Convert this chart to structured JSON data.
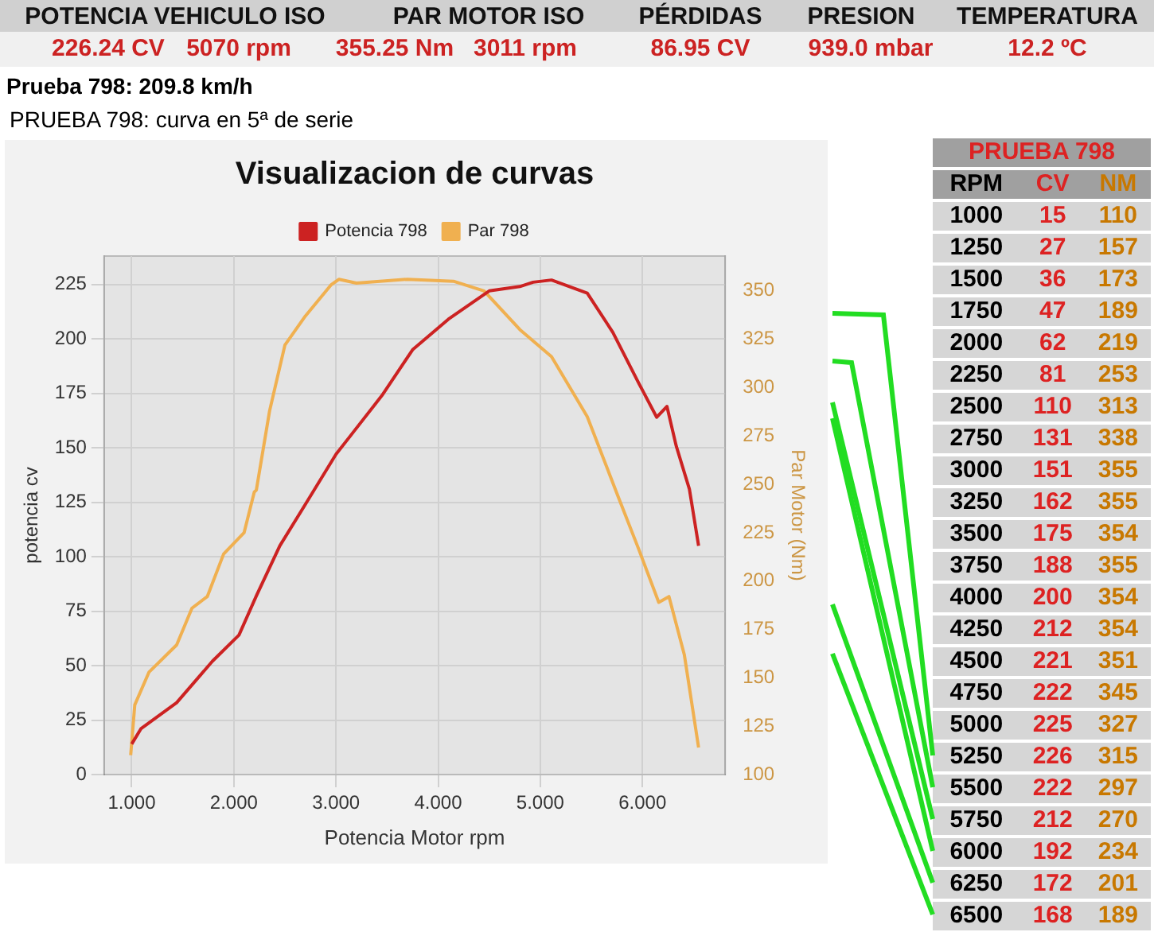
{
  "chart_data": [
    {
      "type": "other",
      "annotations": [
        "POTENCIA VEHICULO ISO",
        "PAR MOTOR ISO",
        "PÉRDIDAS",
        "PRESION",
        "TEMPERATURA",
        "226.24 CV",
        "5070 rpm",
        "355.25 Nm",
        "3011 rpm",
        "86.95 CV",
        "939.0 mbar",
        "12.2 ºC",
        "Prueba 798: 209.8 km/h",
        "PRUEBA 798: curva en 5ª de serie"
      ]
    },
    {
      "type": "line",
      "title": "Visualizacion de curvas",
      "xlabel": "Potencia Motor rpm",
      "ylabel": "potencia cv",
      "y2label": "Par Motor (Nm)",
      "xlim": [
        0.73,
        6.81
      ],
      "xticks": [
        {
          "value": 1,
          "label": "1.000"
        },
        {
          "value": 2,
          "label": "2.000"
        },
        {
          "value": 3,
          "label": "3.000"
        },
        {
          "value": 4,
          "label": "4.000"
        },
        {
          "value": 5,
          "label": "5.000"
        },
        {
          "value": 6,
          "label": "6.000"
        }
      ],
      "ylim": [
        0,
        238
      ],
      "yticks": [
        0,
        25,
        50,
        75,
        100,
        125,
        150,
        175,
        200,
        225
      ],
      "y2lim": [
        100,
        368
      ],
      "y2ticks": [
        100,
        125,
        150,
        175,
        200,
        225,
        250,
        275,
        300,
        325,
        350
      ],
      "grid": true,
      "legend": "top",
      "marker": "none",
      "line_style": "solid",
      "series": [
        {
          "name": "Potencia 798",
          "color": "#cc2222",
          "x": [
            1.0,
            1.09,
            1.44,
            1.79,
            2.05,
            2.22,
            2.45,
            2.7,
            3.0,
            3.15,
            3.45,
            3.75,
            4.1,
            4.5,
            4.8,
            4.93,
            5.11,
            5.46,
            5.71,
            5.96,
            6.14,
            6.24,
            6.33,
            6.46,
            6.55
          ],
          "values": [
            14,
            21,
            33,
            52,
            64,
            82,
            105,
            124,
            147,
            156,
            174,
            195,
            209,
            222,
            224,
            226,
            227,
            221,
            203,
            180,
            164,
            169,
            151,
            131,
            105
          ]
        },
        {
          "name": "Par 798",
          "color": "#f0b050",
          "axis": "y2",
          "x": [
            0.99,
            1.03,
            1.17,
            1.44,
            1.59,
            1.74,
            1.9,
            2.1,
            2.2,
            2.22,
            2.35,
            2.5,
            2.7,
            2.95,
            3.03,
            3.2,
            3.7,
            4.15,
            4.45,
            4.8,
            5.11,
            5.46,
            5.76,
            5.96,
            6.16,
            6.26,
            6.41,
            6.55
          ],
          "values": [
            110,
            136,
            153,
            167,
            186,
            192,
            214,
            225,
            246,
            247,
            288,
            322,
            337,
            353,
            356,
            354,
            356,
            355,
            350,
            330,
            316,
            285,
            244,
            217,
            189,
            192,
            162,
            114
          ]
        }
      ]
    },
    {
      "type": "heatmap",
      "title": "PRUEBA 798",
      "ylabel": "RPM",
      "data_labels": true,
      "categories": [
        "CV",
        "NM"
      ],
      "colors": [
        "#dd2222",
        "#c87800"
      ],
      "y_categories": [
        "1000",
        "1250",
        "1500",
        "1750",
        "2000",
        "2250",
        "2500",
        "2750",
        "3000",
        "3250",
        "3500",
        "3750",
        "4000",
        "4250",
        "4500",
        "4750",
        "5000",
        "5250",
        "5500",
        "5750",
        "6000",
        "6250",
        "6500"
      ],
      "cells": [
        [
          15,
          110
        ],
        [
          27,
          157
        ],
        [
          36,
          173
        ],
        [
          47,
          189
        ],
        [
          62,
          219
        ],
        [
          81,
          253
        ],
        [
          110,
          313
        ],
        [
          131,
          338
        ],
        [
          151,
          355
        ],
        [
          162,
          355
        ],
        [
          175,
          354
        ],
        [
          188,
          355
        ],
        [
          200,
          354
        ],
        [
          212,
          354
        ],
        [
          221,
          351
        ],
        [
          222,
          345
        ],
        [
          225,
          327
        ],
        [
          226,
          315
        ],
        [
          222,
          297
        ],
        [
          212,
          270
        ],
        [
          192,
          234
        ],
        [
          172,
          201
        ],
        [
          168,
          189
        ]
      ]
    }
  ]
}
